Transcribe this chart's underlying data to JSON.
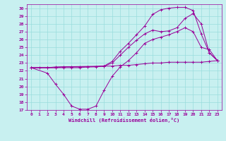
{
  "xlabel": "Windchill (Refroidissement éolien,°C)",
  "bg_color": "#c8f0f0",
  "line_color": "#990099",
  "grid_color": "#99dddd",
  "xlim": [
    -0.5,
    23.5
  ],
  "ylim": [
    17,
    30.5
  ],
  "yticks": [
    17,
    18,
    19,
    20,
    21,
    22,
    23,
    24,
    25,
    26,
    27,
    28,
    29,
    30
  ],
  "xticks": [
    0,
    1,
    2,
    3,
    4,
    5,
    6,
    7,
    8,
    9,
    10,
    11,
    12,
    13,
    14,
    15,
    16,
    17,
    18,
    19,
    20,
    21,
    22,
    23
  ],
  "series": [
    {
      "x": [
        0,
        1,
        2,
        3,
        4,
        5,
        6,
        7,
        8,
        9,
        10,
        11,
        12,
        13,
        14,
        15,
        16,
        17,
        18,
        19,
        20,
        21,
        22,
        23
      ],
      "y": [
        22.4,
        22.4,
        22.4,
        22.4,
        22.5,
        22.5,
        22.5,
        22.5,
        22.5,
        22.6,
        22.6,
        22.7,
        22.7,
        22.8,
        22.9,
        23.0,
        23.0,
        23.1,
        23.1,
        23.1,
        23.1,
        23.1,
        23.2,
        23.3
      ]
    },
    {
      "x": [
        0,
        2,
        3,
        4,
        5,
        6,
        7,
        9,
        10,
        11,
        12,
        13,
        14,
        15,
        16,
        17,
        18,
        19,
        20,
        21,
        22,
        23
      ],
      "y": [
        22.4,
        22.4,
        22.4,
        22.4,
        22.4,
        22.4,
        22.5,
        22.6,
        23.2,
        24.5,
        25.5,
        26.6,
        27.7,
        29.2,
        29.8,
        30.0,
        30.1,
        30.1,
        29.7,
        26.7,
        24.3,
        23.3
      ]
    },
    {
      "x": [
        0,
        2,
        3,
        9,
        10,
        11,
        12,
        13,
        14,
        15,
        16,
        17,
        18,
        19,
        20,
        21,
        22,
        23
      ],
      "y": [
        22.4,
        22.4,
        22.5,
        22.6,
        23.0,
        24.0,
        25.0,
        25.9,
        26.7,
        27.2,
        27.0,
        27.1,
        27.5,
        28.7,
        29.3,
        28.0,
        24.3,
        23.3
      ]
    },
    {
      "x": [
        0,
        2,
        3,
        4,
        5,
        6,
        7,
        8,
        9,
        10,
        11,
        12,
        13,
        14,
        15,
        16,
        17,
        18,
        19,
        20,
        21,
        22,
        23
      ],
      "y": [
        22.4,
        21.7,
        20.3,
        19.0,
        17.5,
        17.1,
        17.1,
        17.5,
        19.5,
        21.3,
        22.5,
        23.3,
        24.3,
        25.5,
        26.0,
        26.3,
        26.6,
        27.0,
        27.5,
        27.0,
        25.0,
        24.7,
        23.3
      ]
    }
  ]
}
